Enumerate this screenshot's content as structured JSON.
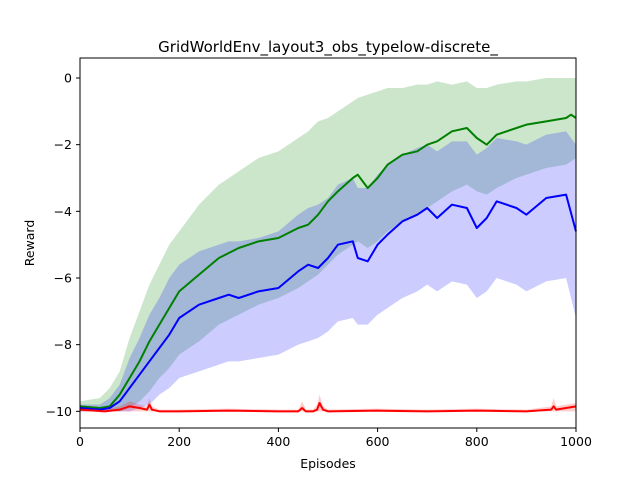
{
  "chart_data": {
    "type": "line",
    "title": "GridWorldEnv_layout3_obs_typelow-discrete_",
    "xlabel": "Episodes",
    "ylabel": "Reward",
    "xlim": [
      0,
      1000
    ],
    "ylim": [
      -10.5,
      0.6
    ],
    "xticks": [
      0,
      200,
      400,
      600,
      800,
      1000
    ],
    "yticks": [
      0,
      -2,
      -4,
      -6,
      -8,
      -10
    ],
    "grid": false,
    "legend": "none",
    "series": [
      {
        "color": "#008000",
        "x": [
          0,
          40,
          60,
          80,
          100,
          120,
          140,
          160,
          180,
          200,
          240,
          280,
          320,
          360,
          400,
          440,
          460,
          480,
          500,
          520,
          550,
          560,
          580,
          600,
          620,
          650,
          680,
          700,
          720,
          750,
          780,
          800,
          820,
          840,
          880,
          900,
          940,
          980,
          990,
          1000
        ],
        "mean": [
          -9.85,
          -9.9,
          -9.85,
          -9.5,
          -9.0,
          -8.5,
          -7.9,
          -7.4,
          -6.9,
          -6.4,
          -5.9,
          -5.4,
          -5.1,
          -4.9,
          -4.8,
          -4.5,
          -4.4,
          -4.1,
          -3.7,
          -3.4,
          -3.0,
          -2.9,
          -3.3,
          -3.0,
          -2.6,
          -2.3,
          -2.2,
          -2.0,
          -1.9,
          -1.6,
          -1.5,
          -1.8,
          -2.0,
          -1.7,
          -1.5,
          -1.4,
          -1.3,
          -1.2,
          -1.1,
          -1.2
        ],
        "upper": [
          -9.7,
          -9.6,
          -9.3,
          -8.8,
          -7.8,
          -7.0,
          -6.2,
          -5.6,
          -5.0,
          -4.6,
          -3.8,
          -3.2,
          -2.8,
          -2.4,
          -2.2,
          -1.8,
          -1.6,
          -1.3,
          -1.2,
          -1.0,
          -0.7,
          -0.6,
          -0.5,
          -0.4,
          -0.3,
          -0.3,
          -0.2,
          -0.2,
          -0.1,
          -0.2,
          -0.1,
          -0.3,
          -0.3,
          -0.2,
          -0.1,
          -0.1,
          0.0,
          0.0,
          0.0,
          0.0
        ],
        "lower": [
          -10.0,
          -10.0,
          -10.0,
          -10.0,
          -9.9,
          -9.7,
          -9.4,
          -9.0,
          -8.7,
          -8.3,
          -7.9,
          -7.4,
          -7.1,
          -6.8,
          -6.6,
          -6.3,
          -6.1,
          -5.9,
          -5.6,
          -5.3,
          -5.0,
          -4.9,
          -5.1,
          -4.9,
          -4.6,
          -4.3,
          -4.1,
          -3.9,
          -3.7,
          -3.4,
          -3.2,
          -3.4,
          -3.5,
          -3.3,
          -3.0,
          -2.9,
          -2.7,
          -2.6,
          -2.5,
          -2.4
        ]
      },
      {
        "color": "#0000ff",
        "x": [
          0,
          40,
          60,
          80,
          100,
          120,
          140,
          160,
          180,
          200,
          240,
          280,
          300,
          320,
          360,
          400,
          440,
          460,
          480,
          500,
          520,
          550,
          560,
          580,
          600,
          620,
          650,
          680,
          700,
          720,
          750,
          780,
          800,
          820,
          840,
          880,
          900,
          940,
          980,
          1000
        ],
        "mean": [
          -9.9,
          -9.95,
          -9.9,
          -9.7,
          -9.3,
          -8.9,
          -8.5,
          -8.1,
          -7.7,
          -7.2,
          -6.8,
          -6.6,
          -6.5,
          -6.6,
          -6.4,
          -6.3,
          -5.8,
          -5.6,
          -5.7,
          -5.4,
          -5.0,
          -4.9,
          -5.4,
          -5.5,
          -5.0,
          -4.7,
          -4.3,
          -4.1,
          -3.9,
          -4.2,
          -3.8,
          -3.9,
          -4.5,
          -4.2,
          -3.7,
          -3.9,
          -4.1,
          -3.6,
          -3.5,
          -4.6
        ],
        "upper": [
          -9.8,
          -9.8,
          -9.6,
          -9.2,
          -8.4,
          -7.8,
          -7.1,
          -6.6,
          -6.0,
          -5.6,
          -5.2,
          -5.0,
          -4.9,
          -4.9,
          -4.8,
          -4.6,
          -4.1,
          -3.9,
          -3.8,
          -3.6,
          -3.2,
          -3.0,
          -3.3,
          -3.3,
          -2.9,
          -2.6,
          -2.3,
          -2.1,
          -2.0,
          -2.2,
          -1.9,
          -1.9,
          -2.3,
          -2.1,
          -1.8,
          -1.9,
          -2.0,
          -1.7,
          -1.6,
          -2.0
        ],
        "lower": [
          -10.0,
          -10.0,
          -10.0,
          -10.0,
          -10.0,
          -9.9,
          -9.8,
          -9.5,
          -9.3,
          -9.0,
          -8.8,
          -8.6,
          -8.5,
          -8.5,
          -8.4,
          -8.3,
          -8.0,
          -7.9,
          -7.8,
          -7.6,
          -7.3,
          -7.2,
          -7.4,
          -7.4,
          -7.1,
          -6.9,
          -6.6,
          -6.4,
          -6.2,
          -6.4,
          -6.1,
          -6.2,
          -6.6,
          -6.4,
          -6.0,
          -6.2,
          -6.4,
          -6.1,
          -6.0,
          -7.2
        ]
      },
      {
        "color": "#ff0000",
        "x": [
          0,
          50,
          80,
          100,
          120,
          135,
          140,
          145,
          160,
          200,
          300,
          400,
          440,
          448,
          455,
          470,
          478,
          483,
          490,
          500,
          600,
          700,
          800,
          900,
          950,
          955,
          960,
          980,
          1000
        ],
        "mean": [
          -9.95,
          -10.0,
          -9.95,
          -9.85,
          -9.9,
          -9.95,
          -9.8,
          -9.95,
          -10.0,
          -10.0,
          -9.98,
          -10.0,
          -10.0,
          -9.9,
          -10.0,
          -10.0,
          -9.95,
          -9.75,
          -9.95,
          -10.0,
          -9.98,
          -10.0,
          -9.98,
          -10.0,
          -9.95,
          -9.85,
          -9.95,
          -9.9,
          -9.85
        ],
        "upper": [
          -9.9,
          -9.95,
          -9.85,
          -9.7,
          -9.8,
          -9.85,
          -9.6,
          -9.85,
          -9.95,
          -9.95,
          -9.92,
          -9.95,
          -9.95,
          -9.7,
          -9.95,
          -9.95,
          -9.8,
          -9.5,
          -9.85,
          -9.95,
          -9.92,
          -9.95,
          -9.92,
          -9.95,
          -9.85,
          -9.6,
          -9.85,
          -9.8,
          -9.75
        ],
        "lower": [
          -10.0,
          -10.0,
          -10.0,
          -10.0,
          -10.0,
          -10.0,
          -10.0,
          -10.0,
          -10.0,
          -10.0,
          -10.0,
          -10.0,
          -10.0,
          -10.0,
          -10.0,
          -10.0,
          -10.0,
          -10.0,
          -10.0,
          -10.0,
          -10.0,
          -10.0,
          -10.0,
          -10.0,
          -10.0,
          -10.0,
          -10.0,
          -10.0,
          -10.0
        ]
      }
    ]
  }
}
